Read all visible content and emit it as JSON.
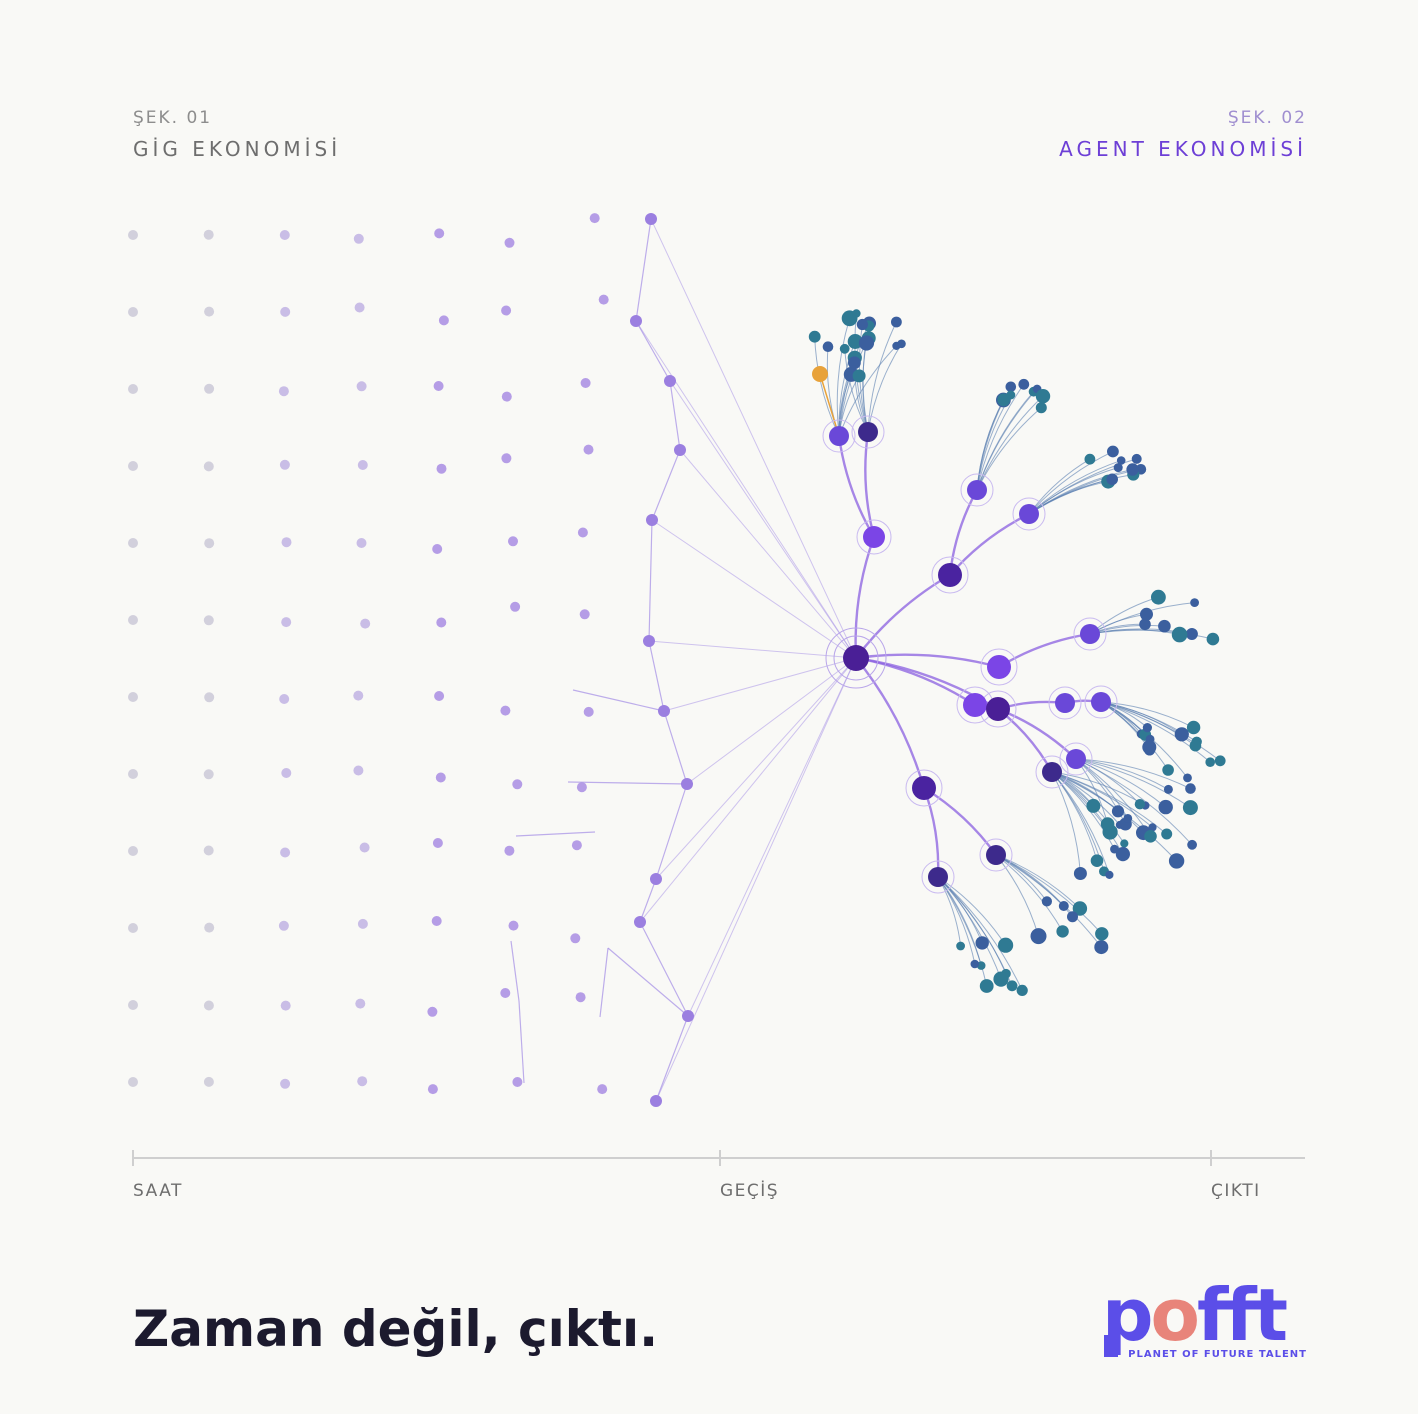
{
  "header": {
    "left": {
      "label": "ŞEK. 01",
      "title": "GİG EKONOMİSİ"
    },
    "right": {
      "label": "ŞEK. 02",
      "title": "AGENT EKONOMİSİ"
    }
  },
  "timeline": {
    "labels": [
      "SAAT",
      "GEÇİŞ",
      "ÇIKTI"
    ]
  },
  "footer": {
    "headline": "Zaman değil, çıktı.",
    "logo": {
      "wordmark": [
        "p",
        "o",
        "fft"
      ],
      "tagline": "PLANET OF FUTURE TALENT"
    }
  }
}
